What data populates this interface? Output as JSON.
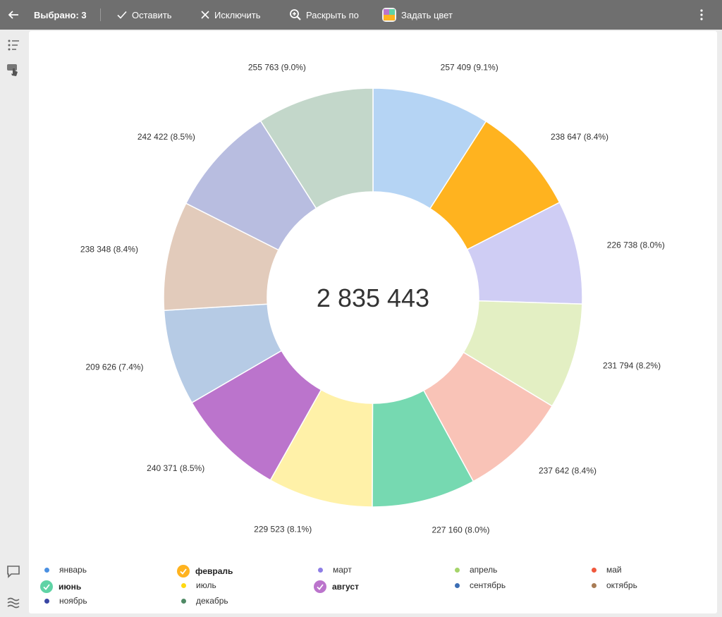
{
  "toolbar": {
    "selected_label": "Выбрано: 3",
    "keep_label": "Оставить",
    "exclude_label": "Исключить",
    "expand_label": "Раскрыть по",
    "set_color_label": "Задать цвет"
  },
  "chart_data": {
    "type": "pie",
    "total_label": "2 835 443",
    "slices": [
      {
        "name": "январь",
        "value": 257409,
        "label": "257 409 (9.1%)",
        "color": "#b5d4f4",
        "legend_dot": "#4a90e2",
        "selected": false
      },
      {
        "name": "февраль",
        "value": 238647,
        "label": "238 647 (8.4%)",
        "color": "#ffb31f",
        "legend_dot": "#ffb31f",
        "selected": true
      },
      {
        "name": "март",
        "value": 226738,
        "label": "226 738 (8.0%)",
        "color": "#cfcdf4",
        "legend_dot": "#8e7ee6",
        "selected": false
      },
      {
        "name": "апрель",
        "value": 231794,
        "label": "231 794 (8.2%)",
        "color": "#e3efc3",
        "legend_dot": "#a5d46a",
        "selected": false
      },
      {
        "name": "май",
        "value": 237642,
        "label": "237 642 (8.4%)",
        "color": "#f9c3b7",
        "legend_dot": "#f0583d",
        "selected": false
      },
      {
        "name": "июнь",
        "value": 227160,
        "label": "227 160 (8.0%)",
        "color": "#76d9b1",
        "legend_dot": "#5fd3a5",
        "selected": true
      },
      {
        "name": "июль",
        "value": 229523,
        "label": "229 523 (8.1%)",
        "color": "#fff1a8",
        "legend_dot": "#ffd912",
        "selected": false
      },
      {
        "name": "август",
        "value": 240371,
        "label": "240 371 (8.5%)",
        "color": "#bb74cc",
        "legend_dot": "#bb74cc",
        "selected": true
      },
      {
        "name": "сентябрь",
        "value": 209626,
        "label": "209 626 (7.4%)",
        "color": "#b6cbe5",
        "legend_dot": "#3c6eb4",
        "selected": false
      },
      {
        "name": "октябрь",
        "value": 238348,
        "label": "238 348 (8.4%)",
        "color": "#e2cbbb",
        "legend_dot": "#a87c55",
        "selected": false
      },
      {
        "name": "ноябрь",
        "value": 242422,
        "label": "242 422 (8.5%)",
        "color": "#b8bde0",
        "legend_dot": "#3a46a4",
        "selected": false
      },
      {
        "name": "декабрь",
        "value": 255763,
        "label": "255 763 (9.0%)",
        "color": "#c3d7ca",
        "legend_dot": "#4f8a65",
        "selected": false
      }
    ],
    "legend_placement": "bottom"
  },
  "icons": {
    "back": "arrow-left-icon",
    "check": "check-icon",
    "close": "close-icon",
    "zoom": "zoom-plus-icon",
    "palette": "palette-icon",
    "more": "more-vertical-icon",
    "list": "list-icon",
    "touch": "touch-icon",
    "comment": "comment-icon",
    "waves": "waves-icon"
  }
}
